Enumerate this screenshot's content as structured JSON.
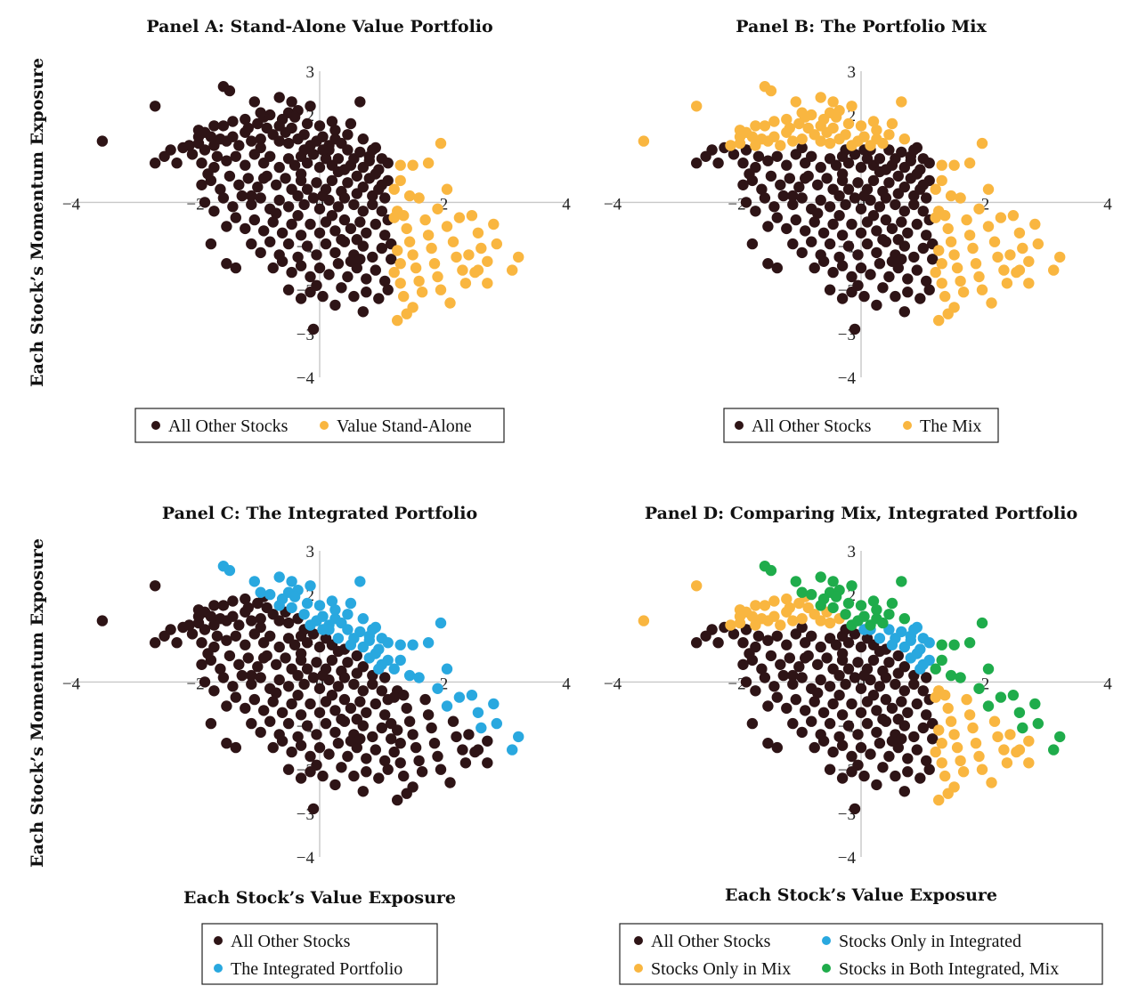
{
  "colors": {
    "other": "#2e1416",
    "value": "#f9b640",
    "mix": "#f9b640",
    "integrated": "#29a8df",
    "both": "#1fac4b",
    "axis": "#c8c8c8"
  },
  "y_axis_label": "Each Stock’s Momentum Exposure",
  "x_axis_label": "Each Stock’s Value Exposure",
  "chart_data": [
    {
      "id": "A",
      "type": "scatter",
      "title": "Panel A: Stand-Alone Value Portfolio",
      "xlim": [
        -4,
        4
      ],
      "ylim": [
        -4,
        3
      ],
      "x_ticks": [
        "−4",
        "−2",
        "0",
        "2",
        "4"
      ],
      "y_ticks": [
        "3",
        "2",
        "1",
        "0",
        "−1",
        "−2",
        "−3",
        "−4"
      ],
      "series": [
        {
          "name": "All Other Stocks",
          "color_key": "other",
          "points": []
        },
        {
          "name": "Value Stand-Alone",
          "color_key": "value",
          "points": []
        }
      ],
      "legend": [
        "All Other Stocks",
        "Value Stand-Alone"
      ]
    },
    {
      "id": "B",
      "type": "scatter",
      "title": "Panel B: The Portfolio Mix",
      "xlim": [
        -4,
        4
      ],
      "ylim": [
        -4,
        3
      ],
      "x_ticks": [
        "−4",
        "−2",
        "0",
        "2",
        "4"
      ],
      "y_ticks": [
        "3",
        "2",
        "1",
        "0",
        "−1",
        "−2",
        "−3",
        "−4"
      ],
      "series": [
        {
          "name": "All Other Stocks",
          "color_key": "other",
          "points": []
        },
        {
          "name": "The Mix",
          "color_key": "mix",
          "points": []
        }
      ],
      "legend": [
        "All Other Stocks",
        "The Mix"
      ]
    },
    {
      "id": "C",
      "type": "scatter",
      "title": "Panel C: The Integrated Portfolio",
      "xlim": [
        -4,
        4
      ],
      "ylim": [
        -4,
        3
      ],
      "x_ticks": [
        "−4",
        "−2",
        "0",
        "2",
        "4"
      ],
      "y_ticks": [
        "3",
        "2",
        "1",
        "0",
        "−1",
        "−2",
        "−3",
        "−4"
      ],
      "series": [
        {
          "name": "All Other Stocks",
          "color_key": "other",
          "points": []
        },
        {
          "name": "The Integrated Portfolio",
          "color_key": "integrated",
          "points": []
        }
      ],
      "legend": [
        "All Other Stocks",
        "The Integrated Portfolio"
      ]
    },
    {
      "id": "D",
      "type": "scatter",
      "title": "Panel D: Comparing Mix, Integrated Portfolio",
      "xlim": [
        -4,
        4
      ],
      "ylim": [
        -4,
        3
      ],
      "x_ticks": [
        "−4",
        "−2",
        "0",
        "2",
        "4"
      ],
      "y_ticks": [
        "3",
        "2",
        "1",
        "0",
        "−1",
        "−2",
        "−3",
        "−4"
      ],
      "series": [
        {
          "name": "All Other Stocks",
          "color_key": "other",
          "points": []
        },
        {
          "name": "Stocks Only in Integrated",
          "color_key": "integrated",
          "points": []
        },
        {
          "name": "Stocks Only in Mix",
          "color_key": "mix",
          "points": []
        },
        {
          "name": "Stocks in Both Integrated, Mix",
          "color_key": "both",
          "points": []
        }
      ],
      "legend": [
        "All Other Stocks",
        "Stocks Only in Integrated",
        "Stocks Only in Mix",
        "Stocks in Both Integrated, Mix"
      ]
    }
  ],
  "stocks": [
    [
      -3.5,
      1.4
    ],
    [
      -2.65,
      2.2
    ],
    [
      -2.65,
      0.9
    ],
    [
      -1.55,
      2.65
    ],
    [
      -1.45,
      2.55
    ],
    [
      -0.65,
      2.4
    ],
    [
      0.65,
      2.3
    ],
    [
      -1.05,
      2.3
    ],
    [
      -0.5,
      2.05
    ],
    [
      -0.35,
      2.1
    ],
    [
      -0.15,
      2.2
    ],
    [
      0.5,
      1.8
    ],
    [
      1.3,
      0.85
    ],
    [
      1.5,
      0.85
    ],
    [
      1.75,
      0.9
    ],
    [
      1.95,
      1.35
    ],
    [
      2.5,
      -1.6
    ],
    [
      2.55,
      -1.55
    ],
    [
      2.7,
      -1.85
    ],
    [
      3.1,
      -1.55
    ],
    [
      1.25,
      -2.7
    ],
    [
      1.4,
      -2.55
    ],
    [
      0.7,
      -2.5
    ],
    [
      0.25,
      -2.35
    ],
    [
      0.05,
      -2.15
    ],
    [
      -0.15,
      -2.05
    ],
    [
      -0.3,
      -2.2
    ],
    [
      -0.5,
      -2.0
    ],
    [
      -0.1,
      -2.9
    ],
    [
      -1.35,
      -1.5
    ],
    [
      -1.5,
      -1.4
    ],
    [
      -1.75,
      -0.95
    ],
    [
      -2.4,
      1.2
    ],
    [
      -2.2,
      1.25
    ],
    [
      -2.05,
      1.1
    ],
    [
      -1.95,
      1.35
    ],
    [
      -1.85,
      1.2
    ],
    [
      -1.7,
      1.3
    ],
    [
      -1.95,
      1.5
    ],
    [
      -1.85,
      1.6
    ],
    [
      -1.75,
      1.5
    ],
    [
      -1.6,
      1.45
    ],
    [
      -1.5,
      1.4
    ],
    [
      -1.4,
      1.5
    ],
    [
      -1.3,
      1.3
    ],
    [
      -1.2,
      1.6
    ],
    [
      -1.1,
      1.4
    ],
    [
      -0.95,
      1.45
    ],
    [
      -0.85,
      1.7
    ],
    [
      -0.75,
      1.55
    ],
    [
      -0.65,
      1.4
    ],
    [
      -0.55,
      1.6
    ],
    [
      -0.45,
      1.7
    ],
    [
      -0.35,
      1.45
    ],
    [
      -0.25,
      1.55
    ],
    [
      -0.15,
      1.3
    ],
    [
      -0.05,
      1.4
    ],
    [
      0.05,
      1.5
    ],
    [
      0.15,
      1.3
    ],
    [
      0.25,
      1.45
    ],
    [
      0.35,
      1.35
    ],
    [
      0.45,
      1.2
    ],
    [
      0.55,
      1.0
    ],
    [
      0.65,
      1.15
    ],
    [
      0.8,
      1.05
    ],
    [
      0.9,
      1.25
    ],
    [
      1.0,
      1.0
    ],
    [
      1.1,
      0.9
    ],
    [
      0.95,
      0.75
    ],
    [
      1.1,
      0.5
    ],
    [
      1.2,
      0.3
    ],
    [
      1.05,
      0.1
    ],
    [
      -1.9,
      0.9
    ],
    [
      -1.7,
      0.8
    ],
    [
      -1.5,
      0.95
    ],
    [
      -1.35,
      1.05
    ],
    [
      -1.2,
      0.85
    ],
    [
      -1.05,
      1.1
    ],
    [
      -0.9,
      0.9
    ],
    [
      -0.8,
      1.05
    ],
    [
      -0.65,
      0.8
    ],
    [
      -0.5,
      1.0
    ],
    [
      -0.4,
      0.85
    ],
    [
      -0.3,
      1.05
    ],
    [
      -0.2,
      0.9
    ],
    [
      -0.1,
      1.1
    ],
    [
      0.0,
      0.8
    ],
    [
      0.1,
      1.0
    ],
    [
      0.2,
      0.85
    ],
    [
      0.3,
      1.0
    ],
    [
      0.4,
      0.75
    ],
    [
      0.5,
      0.85
    ],
    [
      0.6,
      0.6
    ],
    [
      0.7,
      0.8
    ],
    [
      0.8,
      0.55
    ],
    [
      0.9,
      0.65
    ],
    [
      1.0,
      0.4
    ],
    [
      -1.9,
      0.4
    ],
    [
      -1.75,
      0.5
    ],
    [
      -1.6,
      0.3
    ],
    [
      -1.45,
      0.6
    ],
    [
      -1.3,
      0.4
    ],
    [
      -1.15,
      0.55
    ],
    [
      -1.0,
      0.35
    ],
    [
      -0.85,
      0.6
    ],
    [
      -0.7,
      0.4
    ],
    [
      -0.55,
      0.55
    ],
    [
      -0.45,
      0.3
    ],
    [
      -0.3,
      0.5
    ],
    [
      -0.2,
      0.3
    ],
    [
      -0.05,
      0.45
    ],
    [
      0.1,
      0.3
    ],
    [
      0.2,
      0.5
    ],
    [
      0.35,
      0.25
    ],
    [
      0.45,
      0.45
    ],
    [
      0.6,
      0.2
    ],
    [
      0.7,
      0.35
    ],
    [
      0.85,
      0.15
    ],
    [
      0.95,
      0.3
    ],
    [
      -1.85,
      0.0
    ],
    [
      -1.7,
      -0.2
    ],
    [
      -1.55,
      0.1
    ],
    [
      -1.4,
      -0.1
    ],
    [
      -1.25,
      0.15
    ],
    [
      -1.1,
      -0.05
    ],
    [
      -0.95,
      0.1
    ],
    [
      -0.8,
      -0.15
    ],
    [
      -0.65,
      0.05
    ],
    [
      -0.5,
      -0.1
    ],
    [
      -0.35,
      0.15
    ],
    [
      -0.25,
      -0.05
    ],
    [
      -0.1,
      0.1
    ],
    [
      0.0,
      -0.15
    ],
    [
      0.15,
      0.05
    ],
    [
      0.3,
      -0.1
    ],
    [
      0.4,
      0.1
    ],
    [
      0.55,
      -0.05
    ],
    [
      0.7,
      -0.2
    ],
    [
      0.85,
      -0.05
    ],
    [
      1.0,
      -0.2
    ],
    [
      1.1,
      -0.4
    ],
    [
      -1.5,
      -0.55
    ],
    [
      -1.35,
      -0.35
    ],
    [
      -1.2,
      -0.6
    ],
    [
      -1.05,
      -0.4
    ],
    [
      -0.9,
      -0.65
    ],
    [
      -0.75,
      -0.45
    ],
    [
      -0.6,
      -0.7
    ],
    [
      -0.45,
      -0.5
    ],
    [
      -0.3,
      -0.75
    ],
    [
      -0.15,
      -0.5
    ],
    [
      0.0,
      -0.7
    ],
    [
      0.1,
      -0.45
    ],
    [
      0.25,
      -0.65
    ],
    [
      0.4,
      -0.4
    ],
    [
      0.5,
      -0.6
    ],
    [
      0.65,
      -0.45
    ],
    [
      0.75,
      -0.7
    ],
    [
      0.9,
      -0.5
    ],
    [
      1.05,
      -0.75
    ],
    [
      1.15,
      -0.95
    ],
    [
      -1.1,
      -0.95
    ],
    [
      -0.95,
      -1.15
    ],
    [
      -0.8,
      -0.9
    ],
    [
      -0.65,
      -1.2
    ],
    [
      -0.5,
      -0.95
    ],
    [
      -0.35,
      -1.25
    ],
    [
      -0.2,
      -1.0
    ],
    [
      -0.05,
      -1.2
    ],
    [
      0.1,
      -0.95
    ],
    [
      0.25,
      -1.15
    ],
    [
      0.4,
      -0.9
    ],
    [
      0.55,
      -1.2
    ],
    [
      0.7,
      -1.0
    ],
    [
      0.85,
      -1.25
    ],
    [
      1.0,
      -1.05
    ],
    [
      1.15,
      -1.3
    ],
    [
      -0.75,
      -1.5
    ],
    [
      -0.6,
      -1.35
    ],
    [
      -0.45,
      -1.6
    ],
    [
      -0.3,
      -1.45
    ],
    [
      -0.15,
      -1.7
    ],
    [
      0.0,
      -1.5
    ],
    [
      0.15,
      -1.65
    ],
    [
      0.3,
      -1.4
    ],
    [
      0.45,
      -1.7
    ],
    [
      0.6,
      -1.5
    ],
    [
      0.75,
      -1.75
    ],
    [
      0.9,
      -1.55
    ],
    [
      1.05,
      -1.8
    ],
    [
      1.2,
      -1.6
    ],
    [
      -0.05,
      -1.9
    ],
    [
      0.35,
      -1.95
    ],
    [
      0.55,
      -2.15
    ],
    [
      0.75,
      -2.05
    ],
    [
      0.95,
      -2.2
    ],
    [
      1.1,
      -2.0
    ],
    [
      -1.2,
      1.9
    ],
    [
      -1.0,
      1.8
    ],
    [
      -0.8,
      2.0
    ],
    [
      -0.6,
      1.9
    ],
    [
      -0.4,
      1.95
    ],
    [
      -0.2,
      1.8
    ],
    [
      0.0,
      1.75
    ],
    [
      0.2,
      1.85
    ],
    [
      -1.65,
      1.05
    ],
    [
      -1.8,
      0.65
    ],
    [
      -1.1,
      0.15
    ],
    [
      -0.35,
      -0.3
    ],
    [
      0.2,
      -0.3
    ],
    [
      0.6,
      -0.85
    ],
    [
      -0.7,
      -0.25
    ],
    [
      0.3,
      0.7
    ],
    [
      -0.3,
      0.65
    ],
    [
      0.15,
      1.2
    ],
    [
      0.5,
      -1.35
    ],
    [
      -0.9,
      0.55
    ],
    [
      0.85,
      1.2
    ],
    [
      -1.55,
      1.75
    ],
    [
      -0.95,
      1.25
    ],
    [
      0.05,
      0.15
    ],
    [
      0.35,
      -0.85
    ],
    [
      0.8,
      0.95
    ],
    [
      0.65,
      -1.3
    ],
    [
      1.25,
      -0.2
    ],
    [
      1.25,
      -1.1
    ],
    [
      1.3,
      0.5
    ],
    [
      1.35,
      -0.3
    ],
    [
      1.4,
      -0.6
    ],
    [
      1.45,
      -0.9
    ],
    [
      1.5,
      -1.2
    ],
    [
      1.55,
      -1.5
    ],
    [
      1.6,
      0.1
    ],
    [
      1.7,
      -0.4
    ],
    [
      1.75,
      -0.75
    ],
    [
      1.8,
      -1.05
    ],
    [
      1.85,
      -1.4
    ],
    [
      1.9,
      -1.7
    ],
    [
      1.95,
      -2.0
    ],
    [
      2.05,
      0.3
    ],
    [
      2.05,
      -0.55
    ],
    [
      2.15,
      -0.9
    ],
    [
      2.2,
      -1.25
    ],
    [
      2.3,
      -1.55
    ],
    [
      2.35,
      -1.85
    ],
    [
      2.45,
      -0.3
    ],
    [
      2.55,
      -0.7
    ],
    [
      2.6,
      -1.05
    ],
    [
      2.7,
      -1.35
    ],
    [
      2.8,
      -0.5
    ],
    [
      2.85,
      -0.95
    ],
    [
      3.2,
      -1.25
    ],
    [
      1.3,
      -1.85
    ],
    [
      1.35,
      -2.15
    ],
    [
      1.5,
      -2.4
    ],
    [
      1.65,
      -2.05
    ],
    [
      2.1,
      -2.3
    ],
    [
      1.2,
      -0.35
    ],
    [
      1.3,
      -1.4
    ],
    [
      1.45,
      0.15
    ],
    [
      1.6,
      -1.8
    ],
    [
      1.9,
      -0.15
    ],
    [
      2.25,
      -0.35
    ],
    [
      2.4,
      -1.2
    ],
    [
      -2.5,
      1.05
    ],
    [
      -2.3,
      0.9
    ],
    [
      -2.1,
      1.3
    ],
    [
      -1.95,
      1.65
    ],
    [
      -1.7,
      1.75
    ],
    [
      -1.4,
      1.85
    ],
    [
      -1.15,
      1.7
    ],
    [
      -0.9,
      1.95
    ],
    [
      -0.65,
      1.75
    ],
    [
      -0.5,
      1.35
    ],
    [
      -0.25,
      1.2
    ],
    [
      0.05,
      1.2
    ],
    [
      0.25,
      1.65
    ],
    [
      0.45,
      1.55
    ],
    [
      0.7,
      1.45
    ],
    [
      -0.95,
      2.05
    ],
    [
      -0.45,
      2.3
    ]
  ],
  "assignments": {
    "A": {
      "split": "x",
      "at": 1.2,
      "above": "value",
      "below": "other"
    },
    "B": {
      "rule": "mix"
    },
    "C": {
      "rule": "integrated"
    },
    "D": {
      "rule": "compare"
    }
  }
}
